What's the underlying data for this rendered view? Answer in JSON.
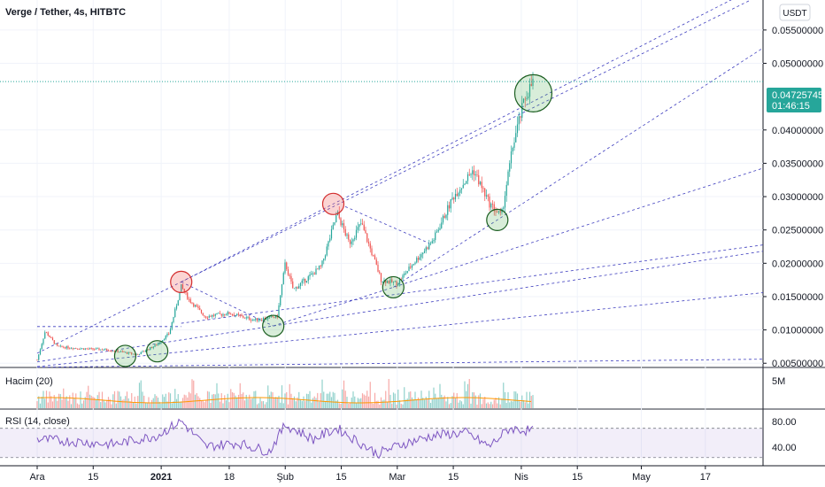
{
  "header": {
    "title": "Verge / Tether, 4s, HITBTC",
    "currency_button": "USDT"
  },
  "price_marker": {
    "price": "0.04725745",
    "countdown": "01:46:15",
    "color": "#26a69a"
  },
  "volume_pane": {
    "label": "Hacim (20)",
    "axis_label": "5M"
  },
  "rsi_pane": {
    "label": "RSI (14, close)",
    "axis_labels": [
      "80.00",
      "40.00"
    ]
  },
  "chart_data": {
    "type": "candlestick",
    "title": "Verge / Tether, 4s, HITBTC",
    "y_ticks": [
      "0.05500000",
      "0.05000000",
      "0.04000000",
      "0.03500000",
      "0.03000000",
      "0.02500000",
      "0.02000000",
      "0.01500000",
      "0.01000000",
      "0.00500000"
    ],
    "x_ticks": [
      "Ara",
      "15",
      "2021",
      "18",
      "Şub",
      "15",
      "Mar",
      "15",
      "Nis",
      "15",
      "May",
      "17"
    ],
    "ylim": [
      0.0045,
      0.0595
    ],
    "last_price": 0.04725745,
    "series": [
      {
        "values": [
          {
            "x": "2020-12-01",
            "y": 0.0055
          },
          {
            "x": "2020-12-03",
            "y": 0.0098
          },
          {
            "x": "2020-12-06",
            "y": 0.0075
          },
          {
            "x": "2020-12-12",
            "y": 0.0072
          },
          {
            "x": "2020-12-19",
            "y": 0.007
          },
          {
            "x": "2020-12-26",
            "y": 0.0063
          },
          {
            "x": "2020-12-31",
            "y": 0.0078
          },
          {
            "x": "2021-01-03",
            "y": 0.0095
          },
          {
            "x": "2021-01-06",
            "y": 0.0165
          },
          {
            "x": "2021-01-08",
            "y": 0.0145
          },
          {
            "x": "2021-01-12",
            "y": 0.012
          },
          {
            "x": "2021-01-18",
            "y": 0.0125
          },
          {
            "x": "2021-01-24",
            "y": 0.0115
          },
          {
            "x": "2021-01-30",
            "y": 0.012
          },
          {
            "x": "2021-02-01",
            "y": 0.02
          },
          {
            "x": "2021-02-03",
            "y": 0.016
          },
          {
            "x": "2021-02-10",
            "y": 0.0195
          },
          {
            "x": "2021-02-14",
            "y": 0.0275
          },
          {
            "x": "2021-02-17",
            "y": 0.023
          },
          {
            "x": "2021-02-20",
            "y": 0.026
          },
          {
            "x": "2021-02-25",
            "y": 0.0175
          },
          {
            "x": "2021-03-01",
            "y": 0.017
          },
          {
            "x": "2021-03-05",
            "y": 0.02
          },
          {
            "x": "2021-03-10",
            "y": 0.0235
          },
          {
            "x": "2021-03-15",
            "y": 0.03
          },
          {
            "x": "2021-03-20",
            "y": 0.034
          },
          {
            "x": "2021-03-24",
            "y": 0.029
          },
          {
            "x": "2021-03-27",
            "y": 0.027
          },
          {
            "x": "2021-03-30",
            "y": 0.038
          },
          {
            "x": "2021-04-02",
            "y": 0.045
          },
          {
            "x": "2021-04-04",
            "y": 0.04725745
          }
        ]
      }
    ],
    "rsi": {
      "ylim": [
        20,
        95
      ],
      "band": [
        70,
        30
      ],
      "values": [
        {
          "x": "2020-12-01",
          "y": 55
        },
        {
          "x": "2020-12-10",
          "y": 52
        },
        {
          "x": "2020-12-20",
          "y": 48
        },
        {
          "x": "2020-12-31",
          "y": 60
        },
        {
          "x": "2021-01-06",
          "y": 80
        },
        {
          "x": "2021-01-12",
          "y": 45
        },
        {
          "x": "2021-01-20",
          "y": 50
        },
        {
          "x": "2021-01-28",
          "y": 38
        },
        {
          "x": "2021-02-01",
          "y": 75
        },
        {
          "x": "2021-02-08",
          "y": 55
        },
        {
          "x": "2021-02-14",
          "y": 70
        },
        {
          "x": "2021-02-24",
          "y": 35
        },
        {
          "x": "2021-03-02",
          "y": 48
        },
        {
          "x": "2021-03-10",
          "y": 60
        },
        {
          "x": "2021-03-18",
          "y": 64
        },
        {
          "x": "2021-03-24",
          "y": 45
        },
        {
          "x": "2021-03-29",
          "y": 70
        },
        {
          "x": "2021-04-04",
          "y": 66
        }
      ]
    },
    "annotation_circles": [
      {
        "x": "2020-12-23",
        "y": 0.0061,
        "color": "green"
      },
      {
        "x": "2020-12-31",
        "y": 0.0068,
        "color": "green"
      },
      {
        "x": "2021-01-06",
        "y": 0.0172,
        "color": "red"
      },
      {
        "x": "2021-01-29",
        "y": 0.0106,
        "color": "green"
      },
      {
        "x": "2021-02-13",
        "y": 0.0289,
        "color": "red"
      },
      {
        "x": "2021-02-28",
        "y": 0.0164,
        "color": "green"
      },
      {
        "x": "2021-03-26",
        "y": 0.0265,
        "color": "green"
      },
      {
        "x": "2021-04-04",
        "y": 0.0455,
        "color": "green"
      }
    ]
  }
}
